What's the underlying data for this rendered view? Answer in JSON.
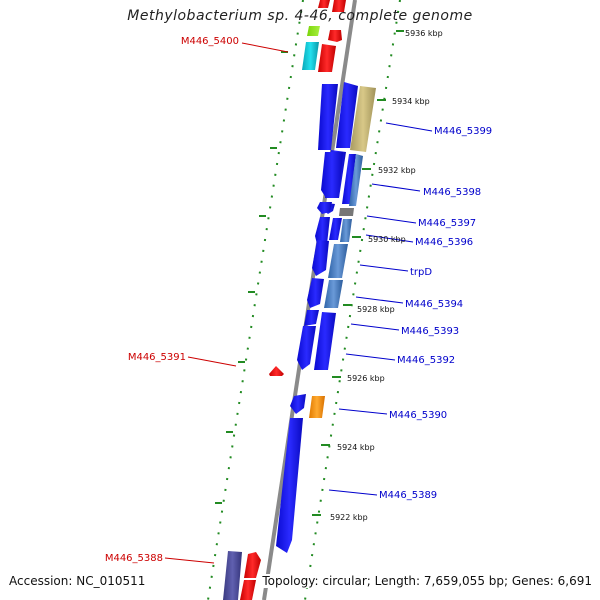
{
  "title": "Methylobacterium sp. 4-46, complete genome",
  "footer": {
    "accession": "Accession: NC_010511",
    "summary": "Topology: circular; Length: 7,659,055 bp; Genes: 6,691"
  },
  "colors": {
    "backbone": "#7a7a7a",
    "tick_line": "#228b22",
    "forward_gene_label": "#0000cc",
    "reverse_gene_label": "#cc0000",
    "gene_blue": "#1414e6",
    "gene_red": "#e61414",
    "gene_cyan": "#11c7d6",
    "gene_orange": "#f59a10",
    "gene_khaki": "#c7b777",
    "gene_steel": "#4f86c6",
    "gene_purple": "#4e4e9c"
  },
  "scale_labels": [
    "5936 kbp",
    "5934 kbp",
    "5932 kbp",
    "5930 kbp",
    "5928 kbp",
    "5926 kbp",
    "5924 kbp",
    "5922 kbp"
  ],
  "gene_labels": [
    {
      "text": "M446_5400",
      "strand": "reverse"
    },
    {
      "text": "M446_5399",
      "strand": "forward"
    },
    {
      "text": "M446_5398",
      "strand": "forward"
    },
    {
      "text": "M446_5397",
      "strand": "forward"
    },
    {
      "text": "M446_5396",
      "strand": "forward"
    },
    {
      "text": "trpD",
      "strand": "forward"
    },
    {
      "text": "M446_5394",
      "strand": "forward"
    },
    {
      "text": "M446_5393",
      "strand": "forward"
    },
    {
      "text": "M446_5392",
      "strand": "forward"
    },
    {
      "text": "M446_5391",
      "strand": "reverse"
    },
    {
      "text": "M446_5390",
      "strand": "forward"
    },
    {
      "text": "M446_5389",
      "strand": "forward"
    },
    {
      "text": "M446_5388",
      "strand": "reverse"
    }
  ]
}
